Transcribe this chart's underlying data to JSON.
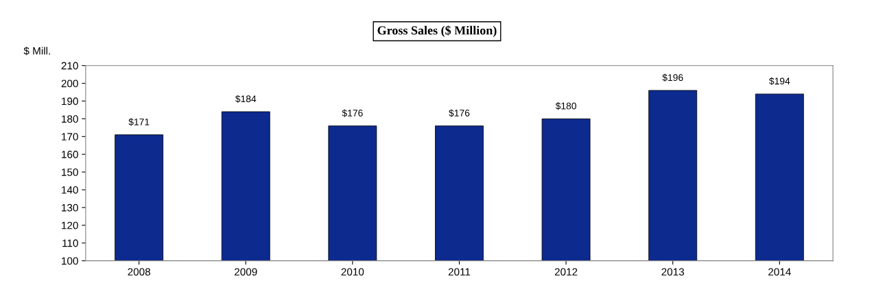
{
  "chart_data": {
    "type": "bar",
    "title": "Gross Sales ($ Million)",
    "ylabel": "$ Mill.",
    "categories": [
      "2008",
      "2009",
      "2010",
      "2011",
      "2012",
      "2013",
      "2014"
    ],
    "values": [
      171,
      184,
      176,
      176,
      180,
      196,
      194
    ],
    "value_labels": [
      "$171",
      "$184",
      "$176",
      "$176",
      "$180",
      "$196",
      "$194"
    ],
    "color": "#0d2a8f",
    "ylim": [
      100,
      210
    ],
    "yticks": [
      100,
      110,
      120,
      130,
      140,
      150,
      160,
      170,
      180,
      190,
      200,
      210
    ],
    "grid": false
  }
}
